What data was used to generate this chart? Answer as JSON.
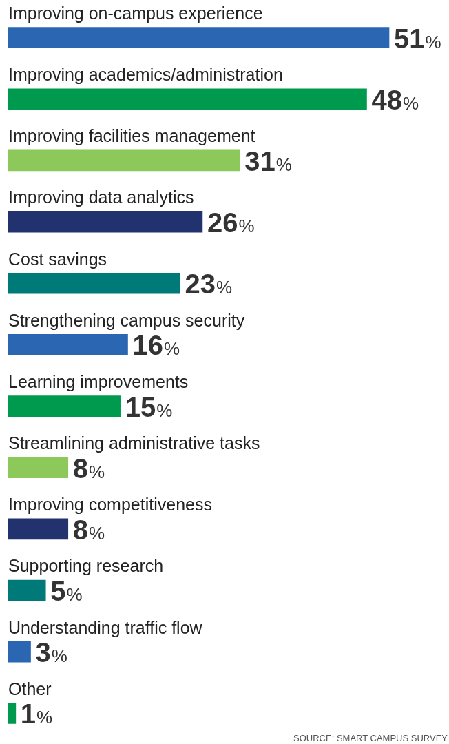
{
  "chart_data": {
    "type": "bar",
    "orientation": "horizontal",
    "categories": [
      "Improving on-campus experience",
      "Improving academics/administration",
      "Improving facilities management",
      "Improving data analytics",
      "Cost savings",
      "Strengthening campus security",
      "Learning improvements",
      "Streamlining administrative tasks",
      "Improving competitiveness",
      "Supporting research",
      "Understanding traffic flow",
      "Other"
    ],
    "values": [
      51,
      48,
      31,
      26,
      23,
      16,
      15,
      8,
      8,
      5,
      3,
      1
    ],
    "colors": [
      "#2a66b1",
      "#009a4e",
      "#8dc85a",
      "#21326f",
      "#007a78",
      "#2a66b1",
      "#009a4e",
      "#8dc85a",
      "#21326f",
      "#007a78",
      "#2a66b1",
      "#009a4e"
    ],
    "value_labels": [
      "51%",
      "48%",
      "31%",
      "26%",
      "23%",
      "16%",
      "15%",
      "8%",
      "8%",
      "5%",
      "3%",
      "1%"
    ],
    "annotations": [
      "SOURCE: SMART CAMPUS SURVEY"
    ],
    "legend": false
  }
}
